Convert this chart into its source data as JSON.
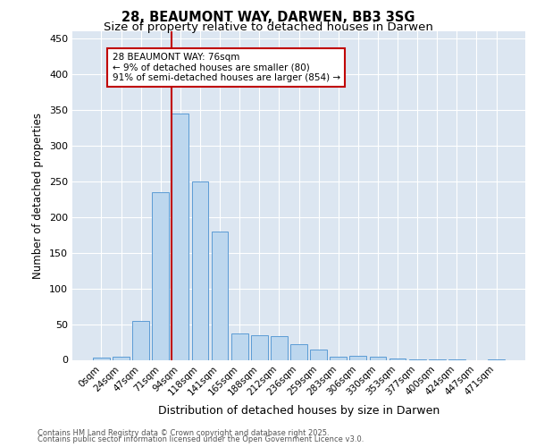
{
  "title1": "28, BEAUMONT WAY, DARWEN, BB3 3SG",
  "title2": "Size of property relative to detached houses in Darwen",
  "xlabel": "Distribution of detached houses by size in Darwen",
  "ylabel": "Number of detached properties",
  "bin_labels": [
    "0sqm",
    "24sqm",
    "47sqm",
    "71sqm",
    "94sqm",
    "118sqm",
    "141sqm",
    "165sqm",
    "188sqm",
    "212sqm",
    "236sqm",
    "259sqm",
    "283sqm",
    "306sqm",
    "330sqm",
    "353sqm",
    "377sqm",
    "400sqm",
    "424sqm",
    "447sqm",
    "471sqm"
  ],
  "bar_values": [
    3,
    4,
    55,
    235,
    345,
    250,
    180,
    37,
    35,
    33,
    22,
    14,
    5,
    6,
    4,
    2,
    1,
    1,
    1,
    0,
    1
  ],
  "bar_color": "#bdd7ee",
  "bar_edge_color": "#5b9bd5",
  "vline_color": "#c00000",
  "annotation_text": "28 BEAUMONT WAY: 76sqm\n← 9% of detached houses are smaller (80)\n91% of semi-detached houses are larger (854) →",
  "annotation_box_color": "#ffffff",
  "annotation_box_edge": "#c00000",
  "ylim": [
    0,
    460
  ],
  "yticks": [
    0,
    50,
    100,
    150,
    200,
    250,
    300,
    350,
    400,
    450
  ],
  "footer1": "Contains HM Land Registry data © Crown copyright and database right 2025.",
  "footer2": "Contains public sector information licensed under the Open Government Licence v3.0.",
  "plot_bg_color": "#dce6f1",
  "fig_bg_color": "#ffffff"
}
